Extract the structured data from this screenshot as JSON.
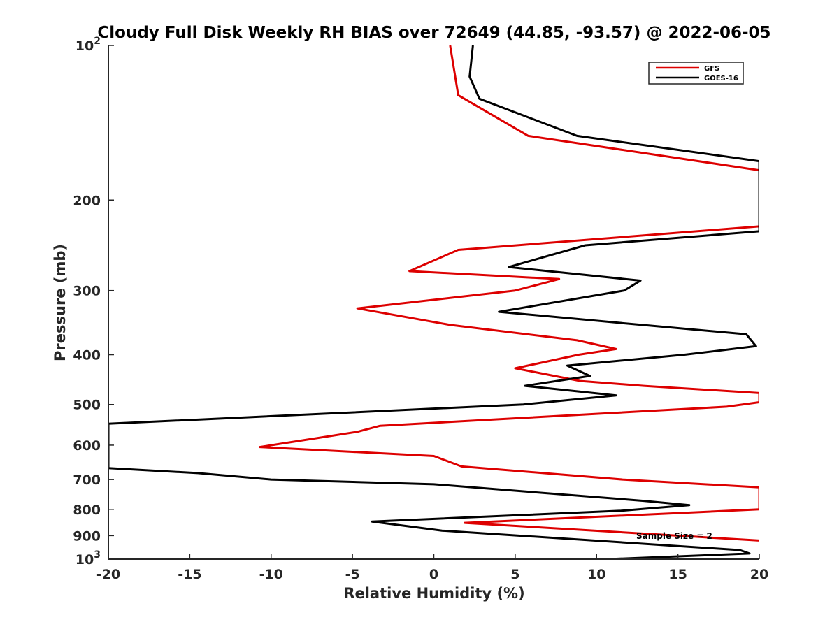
{
  "chart_data": {
    "type": "line",
    "title": "Cloudy Full Disk Weekly RH BIAS over 72649 (44.85, -93.57) @ 2022-06-05",
    "xlabel": "Relative Humidity (%)",
    "ylabel": "Pressure (mb)",
    "xlim": [
      -20,
      20
    ],
    "ylim": [
      100,
      1000
    ],
    "y_scale": "log",
    "y_reversed": true,
    "x_ticks": [
      "-20",
      "-15",
      "-10",
      "-5",
      "0",
      "5",
      "10",
      "15",
      "20"
    ],
    "x_tick_values": [
      -20,
      -15,
      -10,
      -5,
      0,
      5,
      10,
      15,
      20
    ],
    "y_ticks": [
      {
        "value": 100,
        "base": "10",
        "exp": "2"
      },
      {
        "value": 200,
        "label": "200"
      },
      {
        "value": 300,
        "label": "300"
      },
      {
        "value": 400,
        "label": "400"
      },
      {
        "value": 500,
        "label": "500"
      },
      {
        "value": 600,
        "label": "600"
      },
      {
        "value": 700,
        "label": "700"
      },
      {
        "value": 800,
        "label": "800"
      },
      {
        "value": 900,
        "label": "900"
      },
      {
        "value": 1000,
        "base": "10",
        "exp": "3"
      }
    ],
    "legend_position": "top-right",
    "grid": false,
    "annotation": "Sample Size = 2",
    "series": [
      {
        "name": "GFS",
        "color": "#dd0000",
        "points": [
          [
            1.0,
            100
          ],
          [
            1.5,
            125
          ],
          [
            5.8,
            150
          ],
          [
            20,
            175
          ],
          [
            20,
            225
          ],
          [
            1.5,
            250
          ],
          [
            -1.5,
            275
          ],
          [
            7.7,
            285
          ],
          [
            5.0,
            300
          ],
          [
            -4.7,
            325
          ],
          [
            1.0,
            350
          ],
          [
            8.8,
            375
          ],
          [
            11.2,
            390
          ],
          [
            8.9,
            400
          ],
          [
            5.0,
            425
          ],
          [
            9.0,
            450
          ],
          [
            12.9,
            460
          ],
          [
            20,
            475
          ],
          [
            20,
            495
          ],
          [
            18.0,
            505
          ],
          [
            -3.3,
            550
          ],
          [
            -4.7,
            565
          ],
          [
            -8.5,
            590
          ],
          [
            -10.7,
            605
          ],
          [
            0,
            630
          ],
          [
            1.7,
            660
          ],
          [
            11.6,
            700
          ],
          [
            20,
            725
          ],
          [
            20,
            800
          ],
          [
            1.9,
            850
          ],
          [
            20,
            920
          ]
        ]
      },
      {
        "name": "GOES-16",
        "color": "#000000",
        "points": [
          [
            2.4,
            100
          ],
          [
            2.2,
            115
          ],
          [
            2.8,
            127
          ],
          [
            8.8,
            150
          ],
          [
            20,
            168
          ],
          [
            20,
            230
          ],
          [
            9.3,
            245
          ],
          [
            4.6,
            270
          ],
          [
            12.7,
            287
          ],
          [
            11.7,
            300
          ],
          [
            4.0,
            330
          ],
          [
            12.8,
            350
          ],
          [
            19.2,
            365
          ],
          [
            19.8,
            385
          ],
          [
            15.4,
            400
          ],
          [
            8.2,
            420
          ],
          [
            9.6,
            440
          ],
          [
            5.6,
            460
          ],
          [
            11.2,
            480
          ],
          [
            5.5,
            500
          ],
          [
            -20,
            545
          ],
          [
            -20,
            665
          ],
          [
            -14.5,
            680
          ],
          [
            -10.0,
            700
          ],
          [
            0,
            715
          ],
          [
            12.9,
            770
          ],
          [
            15.7,
            785
          ],
          [
            11.5,
            805
          ],
          [
            -3.8,
            845
          ],
          [
            0.5,
            880
          ],
          [
            18.8,
            960
          ],
          [
            19.4,
            975
          ],
          [
            10.7,
            1000
          ]
        ]
      }
    ]
  }
}
